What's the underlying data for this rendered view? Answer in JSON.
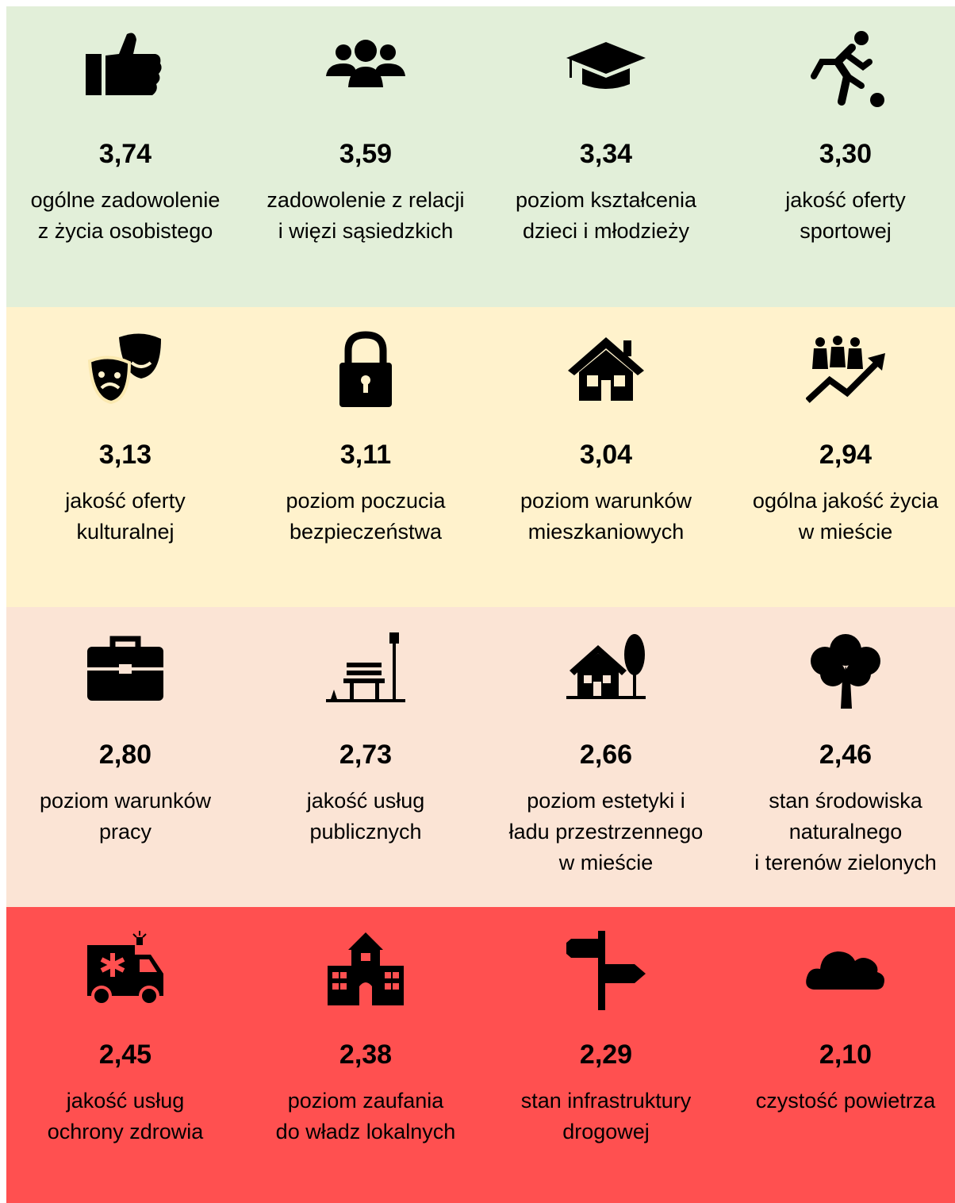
{
  "rows": [
    {
      "color": "#e2efd9",
      "tiles": [
        {
          "value": "3,74",
          "label": [
            "ogólne zadowolenie",
            "z życia osobistego"
          ]
        },
        {
          "value": "3,59",
          "label": [
            "zadowolenie z relacji",
            "i więzi sąsiedzkich"
          ]
        },
        {
          "value": "3,34",
          "label": [
            "poziom kształcenia",
            "dzieci i młodzieży"
          ]
        },
        {
          "value": "3,30",
          "label": [
            "jakość oferty",
            "sportowej"
          ]
        }
      ]
    },
    {
      "color": "#fff2cc",
      "tiles": [
        {
          "value": "3,13",
          "label": [
            "jakość oferty",
            "kulturalnej"
          ]
        },
        {
          "value": "3,11",
          "label": [
            "poziom poczucia",
            "bezpieczeństwa"
          ]
        },
        {
          "value": "3,04",
          "label": [
            "poziom warunków",
            "mieszkaniowych"
          ]
        },
        {
          "value": "2,94",
          "label": [
            "ogólna jakość życia",
            "w mieście"
          ]
        }
      ]
    },
    {
      "color": "#fbe4d5",
      "tiles": [
        {
          "value": "2,80",
          "label": [
            "poziom warunków",
            "pracy"
          ]
        },
        {
          "value": "2,73",
          "label": [
            "jakość usług",
            "publicznych"
          ]
        },
        {
          "value": "2,66",
          "label": [
            "poziom estetyki i",
            "ładu przestrzennego",
            "w mieście"
          ]
        },
        {
          "value": "2,46",
          "label": [
            "stan środowiska",
            "naturalnego",
            "i terenów zielonych"
          ]
        }
      ]
    },
    {
      "color": "#ff5050",
      "tiles": [
        {
          "value": "2,45",
          "label": [
            "jakość usług",
            "ochrony zdrowia"
          ]
        },
        {
          "value": "2,38",
          "label": [
            "poziom zaufania",
            "do władz lokalnych"
          ]
        },
        {
          "value": "2,29",
          "label": [
            "stan infrastruktury",
            "drogowej"
          ]
        },
        {
          "value": "2,10",
          "label": [
            "czystość powietrza"
          ]
        }
      ]
    }
  ]
}
